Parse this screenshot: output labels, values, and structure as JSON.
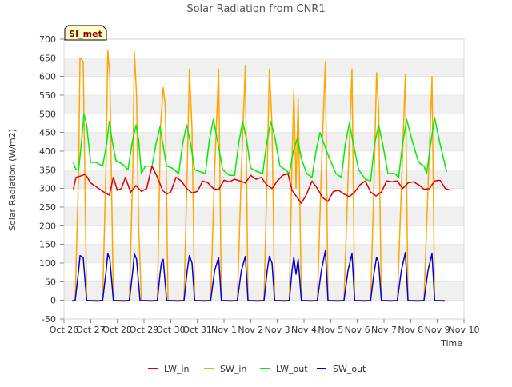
{
  "chart_data": {
    "type": "line",
    "title": "Solar Radiation from CNR1",
    "xlabel": "Time",
    "ylabel": "Solar Radiation (W/m2)",
    "site_label": "SI_met",
    "ylim": [
      -50,
      700
    ],
    "yticks": [
      -50,
      0,
      50,
      100,
      150,
      200,
      250,
      300,
      350,
      400,
      450,
      500,
      550,
      600,
      650,
      700
    ],
    "xlim": [
      0,
      15
    ],
    "xticks": [
      "Oct 26",
      "Oct 27",
      "Oct 28",
      "Oct 29",
      "Oct 30",
      "Oct 31",
      "Nov 1",
      "Nov 2",
      "Nov 3",
      "Nov 4",
      "Nov 5",
      "Nov 6",
      "Nov 7",
      "Nov 8",
      "Nov 9",
      "Nov 10"
    ],
    "grid": "horizontal bands",
    "legend_position": "bottom",
    "x_note": "x in days since Oct 26 00:00",
    "series": [
      {
        "name": "LW_in",
        "color": "#dd0000",
        "x": [
          0.35,
          0.45,
          0.6,
          0.8,
          1.0,
          1.2,
          1.5,
          1.7,
          1.85,
          2.0,
          2.15,
          2.3,
          2.5,
          2.7,
          2.9,
          3.1,
          3.3,
          3.5,
          3.7,
          3.85,
          4.0,
          4.2,
          4.4,
          4.6,
          4.8,
          5.0,
          5.2,
          5.4,
          5.6,
          5.8,
          6.0,
          6.2,
          6.4,
          6.6,
          6.8,
          7.0,
          7.2,
          7.4,
          7.6,
          7.8,
          8.0,
          8.2,
          8.4,
          8.55,
          8.7,
          8.9,
          9.1,
          9.3,
          9.5,
          9.7,
          9.9,
          10.1,
          10.3,
          10.5,
          10.7,
          10.9,
          11.1,
          11.3,
          11.5,
          11.7,
          11.9,
          12.1,
          12.3,
          12.5,
          12.7,
          12.9,
          13.1,
          13.3,
          13.5,
          13.7,
          13.9,
          14.1,
          14.3,
          14.5
        ],
        "y": [
          298,
          330,
          333,
          338,
          315,
          305,
          290,
          282,
          330,
          295,
          300,
          330,
          290,
          308,
          292,
          300,
          360,
          330,
          295,
          285,
          290,
          330,
          320,
          300,
          288,
          292,
          320,
          315,
          300,
          297,
          322,
          318,
          325,
          320,
          315,
          335,
          325,
          330,
          310,
          300,
          320,
          335,
          340,
          295,
          280,
          260,
          285,
          320,
          300,
          275,
          265,
          292,
          295,
          285,
          278,
          290,
          310,
          320,
          290,
          280,
          290,
          320,
          318,
          320,
          300,
          315,
          318,
          310,
          298,
          300,
          320,
          322,
          300,
          295
        ]
      },
      {
        "name": "SW_in",
        "color": "#ffa500",
        "x": [
          0.3,
          0.42,
          0.55,
          0.6,
          0.72,
          0.85,
          1.25,
          1.45,
          1.58,
          1.64,
          1.72,
          1.85,
          2.22,
          2.45,
          2.58,
          2.64,
          2.72,
          2.8,
          2.9,
          3.28,
          3.5,
          3.62,
          3.72,
          3.8,
          3.9,
          4.28,
          4.5,
          4.62,
          4.7,
          4.8,
          4.9,
          5.28,
          5.5,
          5.65,
          5.8,
          5.9,
          6.28,
          6.5,
          6.65,
          6.8,
          6.9,
          7.28,
          7.5,
          7.62,
          7.7,
          7.8,
          7.9,
          8.28,
          8.45,
          8.55,
          8.62,
          8.7,
          8.78,
          8.9,
          9.28,
          9.5,
          9.65,
          9.8,
          9.9,
          10.28,
          10.5,
          10.65,
          10.8,
          10.9,
          11.28,
          11.5,
          11.62,
          11.72,
          11.8,
          11.9,
          12.28,
          12.5,
          12.65,
          12.8,
          12.9,
          13.28,
          13.5,
          13.65,
          13.8,
          13.9,
          14.28
        ],
        "y": [
          -3,
          0,
          350,
          650,
          640,
          0,
          -3,
          0,
          380,
          670,
          600,
          0,
          -3,
          0,
          350,
          665,
          550,
          200,
          0,
          -3,
          0,
          470,
          570,
          520,
          0,
          -3,
          0,
          350,
          620,
          460,
          0,
          -3,
          0,
          350,
          620,
          0,
          -3,
          0,
          350,
          630,
          0,
          -3,
          0,
          350,
          620,
          470,
          0,
          -3,
          0,
          380,
          560,
          300,
          540,
          0,
          -3,
          0,
          350,
          640,
          0,
          -3,
          0,
          320,
          620,
          0,
          -3,
          0,
          300,
          610,
          510,
          0,
          -3,
          0,
          300,
          605,
          0,
          -3,
          0,
          300,
          600,
          0,
          -3
        ]
      },
      {
        "name": "LW_out",
        "color": "#00ee00",
        "x": [
          0.35,
          0.45,
          0.55,
          0.65,
          0.75,
          0.85,
          1.0,
          1.2,
          1.45,
          1.6,
          1.7,
          1.8,
          1.95,
          2.2,
          2.4,
          2.55,
          2.7,
          2.8,
          2.9,
          3.05,
          3.3,
          3.45,
          3.6,
          3.75,
          3.85,
          4.05,
          4.3,
          4.45,
          4.6,
          4.75,
          4.9,
          5.1,
          5.3,
          5.45,
          5.6,
          5.75,
          5.95,
          6.2,
          6.4,
          6.55,
          6.7,
          6.85,
          7.0,
          7.25,
          7.45,
          7.6,
          7.75,
          7.9,
          8.1,
          8.3,
          8.45,
          8.6,
          8.75,
          8.9,
          9.1,
          9.3,
          9.45,
          9.6,
          9.75,
          9.9,
          10.2,
          10.4,
          10.55,
          10.7,
          10.85,
          11.05,
          11.3,
          11.5,
          11.65,
          11.8,
          11.95,
          12.15,
          12.4,
          12.55,
          12.7,
          12.85,
          13.05,
          13.3,
          13.5,
          13.6,
          13.75,
          13.9,
          14.1,
          14.35
        ],
        "y": [
          370,
          350,
          350,
          420,
          500,
          470,
          370,
          370,
          360,
          420,
          480,
          430,
          375,
          365,
          350,
          420,
          470,
          430,
          340,
          360,
          360,
          420,
          465,
          400,
          360,
          355,
          340,
          420,
          470,
          420,
          350,
          345,
          340,
          430,
          485,
          430,
          350,
          335,
          335,
          420,
          480,
          430,
          355,
          345,
          340,
          420,
          480,
          440,
          360,
          350,
          340,
          400,
          435,
          380,
          340,
          330,
          400,
          450,
          420,
          390,
          340,
          330,
          420,
          475,
          420,
          350,
          325,
          320,
          420,
          470,
          420,
          340,
          340,
          330,
          420,
          485,
          430,
          370,
          360,
          340,
          420,
          490,
          420,
          345
        ]
      },
      {
        "name": "SW_out",
        "color": "#0000dd",
        "x": [
          0.3,
          0.42,
          0.55,
          0.6,
          0.72,
          0.85,
          1.25,
          1.45,
          1.58,
          1.64,
          1.72,
          1.85,
          2.22,
          2.45,
          2.58,
          2.64,
          2.72,
          2.85,
          3.28,
          3.5,
          3.6,
          3.65,
          3.72,
          3.85,
          4.28,
          4.5,
          4.62,
          4.7,
          4.8,
          4.9,
          5.28,
          5.5,
          5.65,
          5.8,
          5.9,
          6.28,
          6.5,
          6.65,
          6.8,
          6.9,
          7.28,
          7.5,
          7.62,
          7.7,
          7.8,
          7.9,
          8.28,
          8.45,
          8.55,
          8.62,
          8.7,
          8.78,
          8.9,
          9.28,
          9.5,
          9.65,
          9.8,
          9.9,
          10.28,
          10.5,
          10.65,
          10.8,
          10.9,
          11.28,
          11.5,
          11.62,
          11.72,
          11.8,
          11.9,
          12.28,
          12.5,
          12.65,
          12.8,
          12.9,
          13.28,
          13.5,
          13.65,
          13.8,
          13.9,
          14.28
        ],
        "y": [
          -1,
          0,
          80,
          120,
          115,
          0,
          -1,
          0,
          80,
          125,
          110,
          0,
          -1,
          0,
          80,
          125,
          110,
          0,
          -1,
          0,
          70,
          100,
          110,
          0,
          -1,
          0,
          80,
          120,
          100,
          0,
          -1,
          0,
          80,
          115,
          0,
          -1,
          0,
          80,
          118,
          0,
          -1,
          0,
          80,
          118,
          100,
          0,
          -1,
          0,
          80,
          115,
          70,
          110,
          0,
          -1,
          0,
          80,
          133,
          0,
          -1,
          0,
          80,
          125,
          0,
          -1,
          0,
          70,
          115,
          100,
          0,
          -1,
          0,
          80,
          128,
          0,
          -1,
          0,
          80,
          125,
          0,
          -1
        ]
      }
    ]
  }
}
